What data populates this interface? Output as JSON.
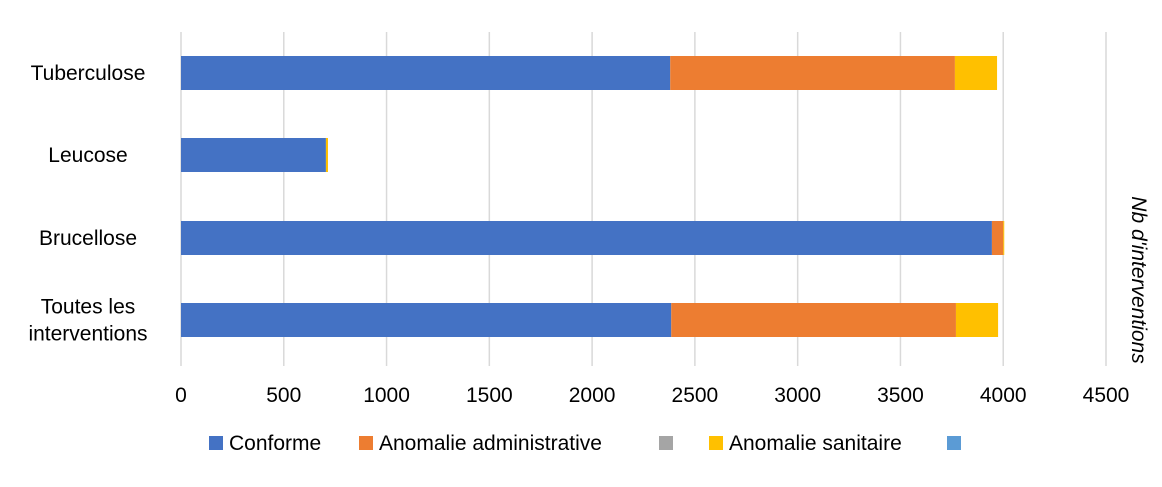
{
  "chart_data": {
    "type": "bar",
    "orientation": "horizontal",
    "stacked": true,
    "categories": [
      "Tuberculose",
      "Leucose",
      "Brucellose",
      "Toutes les interventions"
    ],
    "category_lines": [
      [
        "Tuberculose"
      ],
      [
        "Leucose"
      ],
      [
        "Brucellose"
      ],
      [
        "Toutes les",
        "interventions"
      ]
    ],
    "series": [
      {
        "name": "Conforme",
        "color": "#4472C4",
        "values": [
          2380,
          705,
          3945,
          2385
        ]
      },
      {
        "name": "Anomalie administrative",
        "color": "#ED7D31",
        "values": [
          1385,
          0,
          55,
          1385
        ]
      },
      {
        "name": "",
        "color": "#A5A5A5",
        "values": [
          0,
          0,
          0,
          0
        ]
      },
      {
        "name": "Anomalie sanitaire",
        "color": "#FFC000",
        "values": [
          205,
          10,
          5,
          205
        ]
      },
      {
        "name": "",
        "color": "#5B9BD5",
        "values": [
          0,
          0,
          0,
          0
        ]
      }
    ],
    "xlim": [
      0,
      4500
    ],
    "xticks": [
      0,
      500,
      1000,
      1500,
      2000,
      2500,
      3000,
      3500,
      4000,
      4500
    ],
    "xlabel": "",
    "ylabel": "Nb d'interventions",
    "grid": "vertical",
    "legend_position": "bottom"
  }
}
